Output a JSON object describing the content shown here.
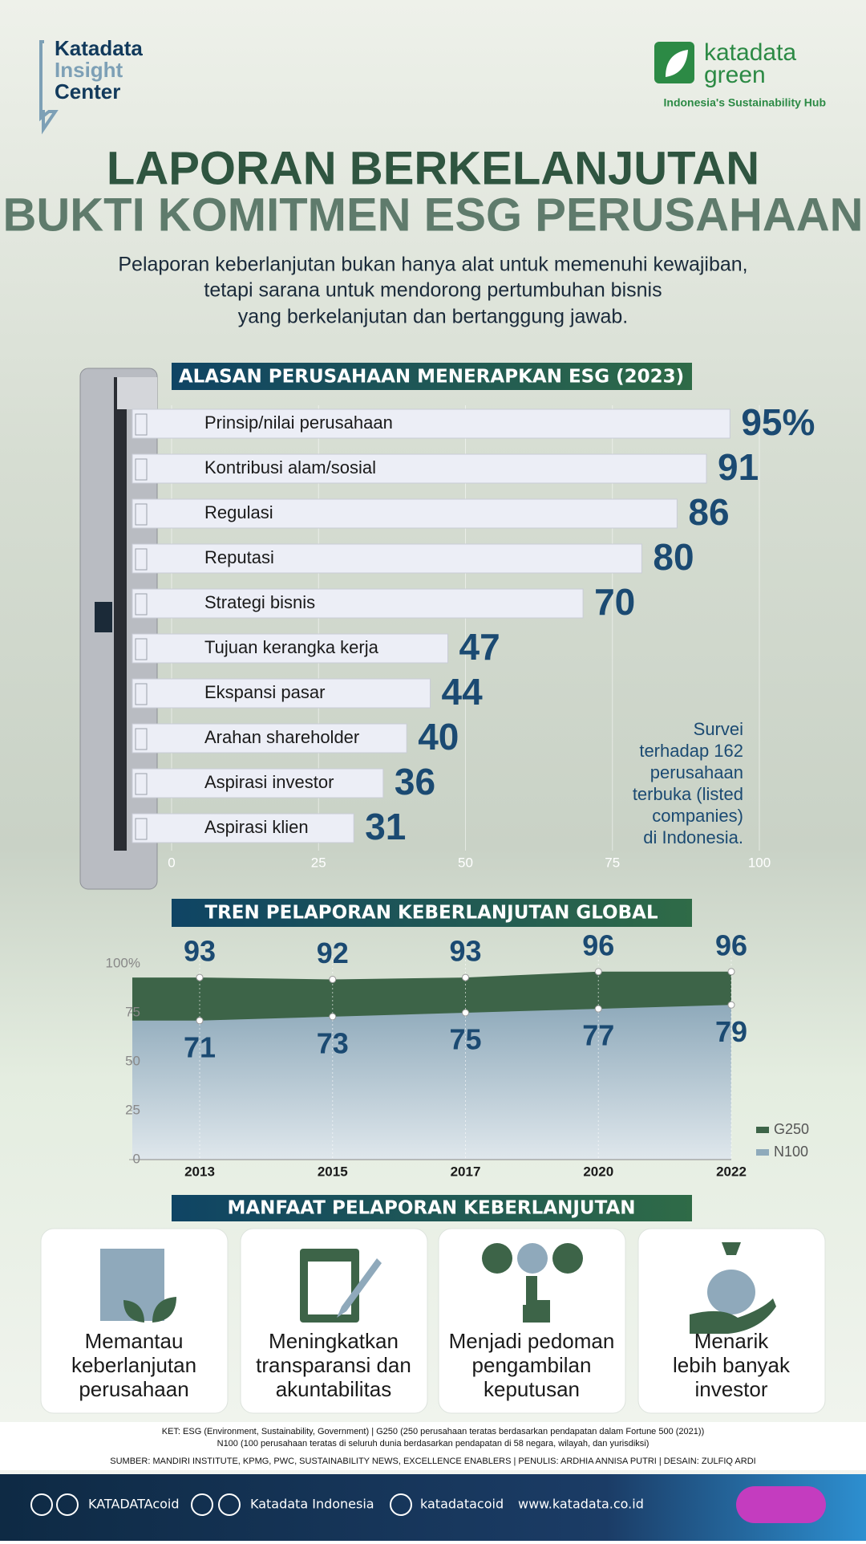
{
  "logos": {
    "left": [
      "Katadata",
      "Insight",
      "Center"
    ],
    "right": [
      "katadata",
      "green"
    ],
    "tagline": "Indonesia's Sustainability Hub"
  },
  "title": [
    "LAPORAN BERKELANJUTAN",
    "BUKTI KOMITMEN ESG PERUSAHAAN"
  ],
  "subtitle": [
    "Pelaporan keberlanjutan bukan hanya alat untuk memenuhi kewajiban,",
    "tetapi sarana untuk mendorong pertumbuhan bisnis",
    "yang berkelanjutan dan bertanggung jawab."
  ],
  "chart_data": [
    {
      "type": "bar",
      "orientation": "horizontal",
      "title": "ALASAN PERUSAHAAN MENERAPKAN ESG (2023)",
      "categories": [
        "Prinsip/nilai perusahaan",
        "Kontribusi alam/sosial",
        "Regulasi",
        "Reputasi",
        "Strategi bisnis",
        "Tujuan kerangka kerja",
        "Ekspansi pasar",
        "Arahan shareholder",
        "Aspirasi investor",
        "Aspirasi klien"
      ],
      "values": [
        95,
        91,
        86,
        80,
        70,
        47,
        44,
        40,
        36,
        31
      ],
      "value_labels": [
        "95%",
        "91",
        "86",
        "80",
        "70",
        "47",
        "44",
        "40",
        "36",
        "31"
      ],
      "color": "#eceef6",
      "xlim": [
        0,
        100
      ],
      "xticks": [
        0,
        25,
        50,
        75,
        100
      ],
      "grid": true,
      "annotation": [
        "Survei",
        "terhadap 162",
        "perusahaan",
        "terbuka (listed",
        "companies)",
        "di Indonesia."
      ]
    },
    {
      "type": "area",
      "title": "TREN PELAPORAN KEBERLANJUTAN GLOBAL",
      "categories": [
        "2013",
        "2015",
        "2017",
        "2020",
        "2022"
      ],
      "series": [
        {
          "name": "G250",
          "color": "#3d6448",
          "values": [
            93,
            92,
            93,
            96,
            96
          ]
        },
        {
          "name": "N100",
          "color": "#8faabb",
          "values": [
            71,
            73,
            75,
            77,
            79
          ]
        }
      ],
      "ylim": [
        0,
        100
      ],
      "yticks": [
        0,
        25,
        50,
        75,
        {
          "value": 100,
          "label": "100%"
        }
      ],
      "legend": "lower right"
    }
  ],
  "benefits": {
    "title": "MANFAAT PELAPORAN KEBERLANJUTAN",
    "items": [
      [
        "Memantau",
        "keberlanjutan",
        "perusahaan"
      ],
      [
        "Meningkatkan",
        "transparansi dan",
        "akuntabilitas"
      ],
      [
        "Menjadi pedoman",
        "pengambilan",
        "keputusan"
      ],
      [
        "Menarik",
        "lebih banyak",
        "investor"
      ]
    ]
  },
  "notes": [
    "KET: ESG (Environment, Sustainability, Government) | G250 (250 perusahaan teratas berdasarkan pendapatan dalam Fortune 500 (2021))",
    "N100 (100 perusahaan teratas di seluruh dunia berdasarkan pendapatan di 58 negara, wilayah, dan yurisdiksi)",
    "SUMBER: MANDIRI INSTITUTE, KPMG, PWC, SUSTAINABILITY NEWS, EXCELLENCE ENABLERS | PENULIS: ARDHIA ANNISA PUTRI | DESAIN: ZULFIQ ARDI"
  ],
  "footer": [
    "KATADATAcoid",
    "Katadata Indonesia",
    "katadatacoid",
    "www.katadata.co.id"
  ]
}
